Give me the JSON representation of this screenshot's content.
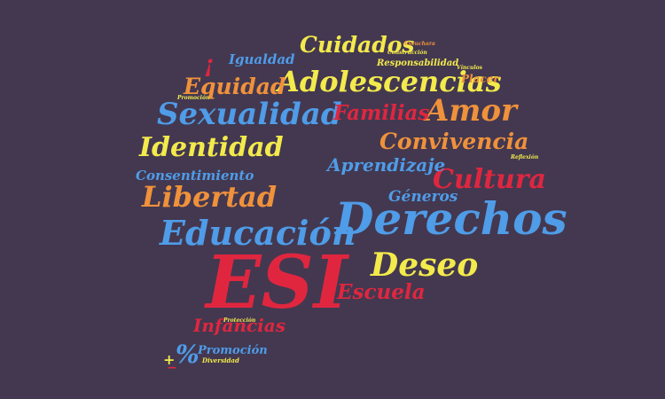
{
  "palette": {
    "background": "#433850",
    "yellow": "#f3ea4c",
    "blue": "#4f9ce8",
    "orange": "#f0913b",
    "red": "#e0263f"
  },
  "words": [
    {
      "id": "esi",
      "text": "ESI",
      "color": "red"
    },
    {
      "id": "derechos",
      "text": "Derechos",
      "color": "blue"
    },
    {
      "id": "educacion",
      "text": "Educación",
      "color": "blue"
    },
    {
      "id": "adolescencias",
      "text": "Adolescencias",
      "color": "yellow"
    },
    {
      "id": "sexualidad",
      "text": "Sexualidad",
      "color": "blue"
    },
    {
      "id": "deseo",
      "text": "Deseo",
      "color": "yellow"
    },
    {
      "id": "identidad",
      "text": "Identidad",
      "color": "yellow"
    },
    {
      "id": "libertad",
      "text": "Libertad",
      "color": "orange"
    },
    {
      "id": "cultura",
      "text": "Cultura",
      "color": "red"
    },
    {
      "id": "amor",
      "text": "Amor",
      "color": "orange"
    },
    {
      "id": "convivencia",
      "text": "Convivencia",
      "color": "orange"
    },
    {
      "id": "familias",
      "text": "Familias",
      "color": "red"
    },
    {
      "id": "cuidados",
      "text": "Cuidados",
      "color": "yellow"
    },
    {
      "id": "equidad",
      "text": "Equidad",
      "color": "orange"
    },
    {
      "id": "escuela",
      "text": "Escuela",
      "color": "red"
    },
    {
      "id": "aprendizaje",
      "text": "Aprendizaje",
      "color": "blue"
    },
    {
      "id": "infancias",
      "text": "Infancias",
      "color": "red"
    },
    {
      "id": "generos",
      "text": "Géneros",
      "color": "blue"
    },
    {
      "id": "consentimiento",
      "text": "Consentimiento",
      "color": "blue"
    },
    {
      "id": "igualdad",
      "text": "Igualdad",
      "color": "blue"
    },
    {
      "id": "responsabilidad",
      "text": "Responsabilidad",
      "color": "yellow"
    },
    {
      "id": "placer",
      "text": "Placer",
      "color": "orange"
    },
    {
      "id": "promocion-large",
      "text": "Promoción",
      "color": "blue"
    },
    {
      "id": "percent",
      "text": "%",
      "color": "blue"
    },
    {
      "id": "exclamation",
      "text": "¡",
      "color": "red"
    },
    {
      "id": "escuchara",
      "text": "Escuchara",
      "color": "orange"
    },
    {
      "id": "construccion",
      "text": "Construcción",
      "color": "yellow"
    },
    {
      "id": "vinculos",
      "text": "Vínculos",
      "color": "yellow"
    },
    {
      "id": "reflexion",
      "text": "Reflexión",
      "color": "yellow"
    },
    {
      "id": "promocion-small",
      "text": "Promoción",
      "color": "yellow"
    },
    {
      "id": "proteccion",
      "text": "Protección",
      "color": "yellow"
    },
    {
      "id": "diversidad",
      "text": "Diversidad",
      "color": "yellow"
    },
    {
      "id": "plus",
      "text": "+",
      "color": "yellow"
    },
    {
      "id": "minus",
      "text": "−",
      "color": "red"
    }
  ]
}
